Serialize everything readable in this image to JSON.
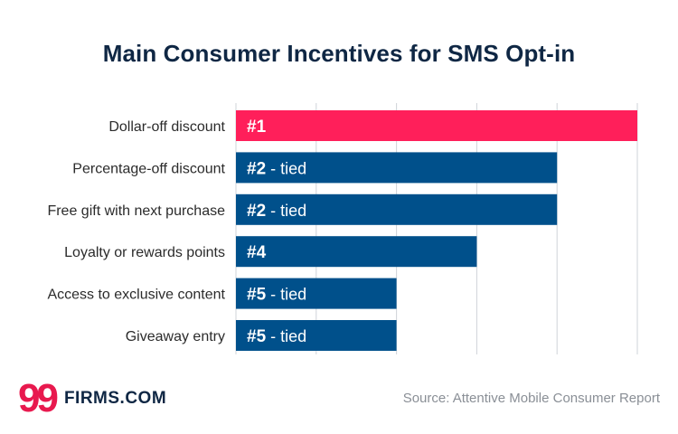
{
  "brand": {
    "logo_mark": "99",
    "logo_text": "FIRMS.COM"
  },
  "source": "Source: Attentive Mobile Consumer Report",
  "chart_data": {
    "type": "bar",
    "orientation": "horizontal",
    "title": "Main Consumer Incentives for SMS Opt-in",
    "xlabel": "",
    "ylabel": "",
    "xlim": [
      0,
      5
    ],
    "grid": true,
    "categories": [
      "Dollar-off discount",
      "Percentage-off discount",
      "Free gift with next purchase",
      "Loyalty or rewards points",
      "Access to exclusive content",
      "Giveaway entry"
    ],
    "values": [
      5,
      4,
      4,
      3,
      2,
      2
    ],
    "rank_labels": [
      "#1",
      "#2",
      "#2",
      "#4",
      "#5",
      "#5"
    ],
    "tie_labels": [
      "",
      " - tied",
      " - tied",
      "",
      " - tied",
      " - tied"
    ],
    "colors": [
      "#ff1f5a",
      "#00508b",
      "#00508b",
      "#00508b",
      "#00508b",
      "#00508b"
    ],
    "grid_color": "#cfd3d8"
  }
}
